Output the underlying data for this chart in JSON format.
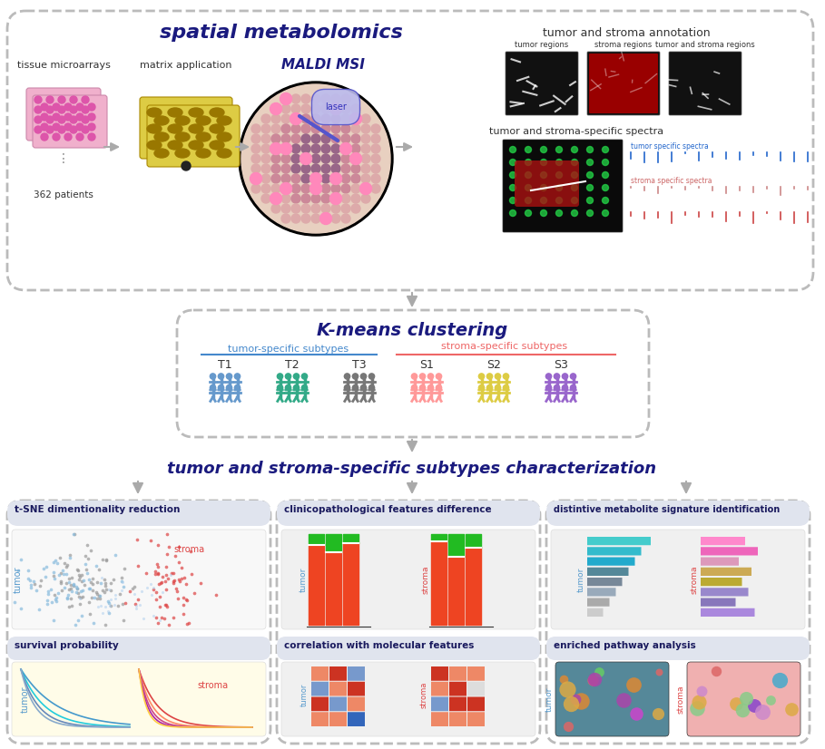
{
  "title_spatial": "spatial metabolomics",
  "title_annotation": "tumor and stroma annotation",
  "title_kmeans": "K-means clustering",
  "title_characterization": "tumor and stroma-specific subtypes characterization",
  "label_tissue": "tissue microarrays",
  "label_matrix": "matrix application",
  "label_maldi": "MALDI MSI",
  "label_patients": "362 patients",
  "label_laser": "laser",
  "label_tumor_regions": "tumor regions",
  "label_stroma_regions": "stroma regions",
  "label_ts_regions": "tumor and stroma regions",
  "label_specific_spectra": "tumor and stroma-specific spectra",
  "label_tumor_specific": "tumor specific spectra",
  "label_stroma_specific": "stroma specific spectra",
  "label_tumor_subtypes": "tumor-specific subtypes",
  "label_stroma_subtypes": "stroma-specific subtypes",
  "subtypes_tumor": [
    "T1",
    "T2",
    "T3"
  ],
  "subtypes_stroma": [
    "S1",
    "S2",
    "S3"
  ],
  "subtype_colors_tumor": [
    "#6699cc",
    "#33aa88",
    "#777777"
  ],
  "subtype_colors_stroma": [
    "#ff9999",
    "#ddcc44",
    "#9966cc"
  ],
  "panel_tsne": "t-SNE dimentionality reduction",
  "panel_survival": "survival probability",
  "panel_clinico": "clinicopathological features difference",
  "panel_corr": "correlation with molecular features",
  "panel_metabolite": "distintive metabolite signature identification",
  "panel_pathway": "enriched pathway analysis",
  "dark_blue": "#1a1a7e",
  "medium_blue": "#4444aa",
  "arrow_color": "#aaaaaa",
  "dashed_border": "#bbbbbb",
  "green_bar": "#22bb22",
  "red_bar": "#ee4422",
  "fig_width": 9.09,
  "fig_height": 8.26,
  "fig_dpi": 100
}
